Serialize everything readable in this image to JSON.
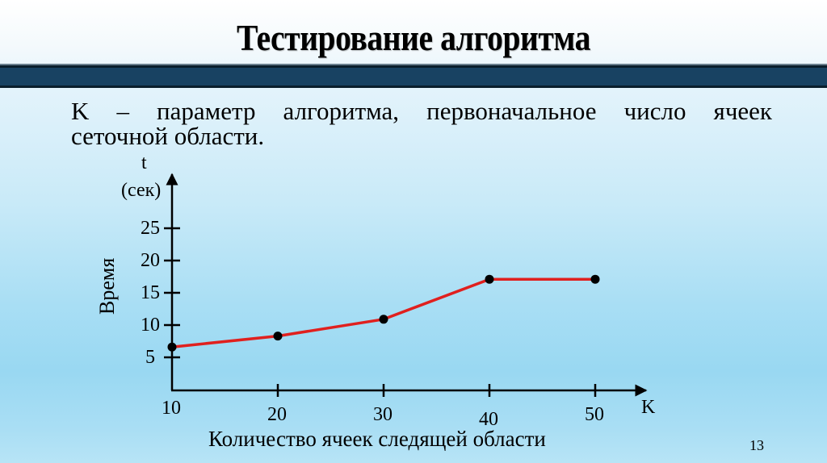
{
  "slide": {
    "title": "Тестирование алгоритма",
    "body_line1": "K – параметр алгоритма, первоначальное число ячеек",
    "body_line2": "сеточной области.",
    "page_number": "13",
    "colors": {
      "band": "#184262",
      "line": "#e0201e",
      "points": "#000000"
    }
  },
  "chart_data": {
    "type": "line",
    "title": "",
    "xlabel": "Количество ячеек следящей области",
    "ylabel": "Время",
    "y_axis_unit_top": "t",
    "y_axis_unit_bottom": "(сек)",
    "x_axis_end_label": "K",
    "x": [
      10,
      20,
      30,
      40,
      50
    ],
    "values": [
      6.6,
      8.3,
      10.9,
      17.1,
      17.1
    ],
    "x_ticks": [
      "10",
      "20",
      "30",
      "40",
      "50"
    ],
    "y_ticks": [
      "5",
      "10",
      "15",
      "20",
      "25"
    ],
    "xlim": [
      10,
      55
    ],
    "ylim": [
      0,
      30
    ],
    "grid": false,
    "legend": null,
    "series": [
      {
        "name": "Время",
        "values": [
          6.6,
          8.3,
          10.9,
          17.1,
          17.1
        ],
        "color": "#e0201e",
        "marker": "circle"
      }
    ]
  }
}
